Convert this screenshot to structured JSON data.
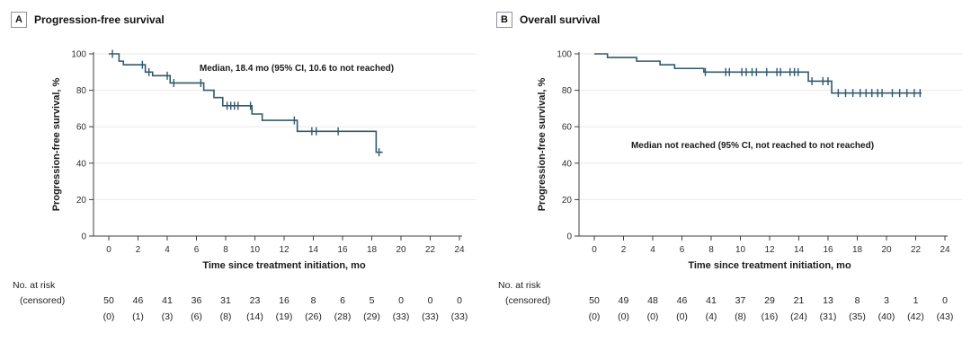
{
  "figure": {
    "background": "#ffffff",
    "risk_header": "No. at risk",
    "risk_censored_label": "(censored)"
  },
  "colors": {
    "curve": "#30596b",
    "axis": "#3f3f3f",
    "grid": "#e8e8e8",
    "tick_text": "#2e2e2e"
  },
  "chart_data": [
    {
      "type": "line",
      "subtype": "kaplan-meier-step",
      "panel": "A",
      "title": "Progression-free survival",
      "ylabel": "Progression-free survival, %",
      "xlabel": "Time since treatment initiation, mo",
      "annotation": "Median, 18.4 mo (95% CI, 10.6 to not reached)",
      "xlim": [
        0,
        24
      ],
      "ylim": [
        0,
        100
      ],
      "xticks": [
        0,
        2,
        4,
        6,
        8,
        10,
        12,
        14,
        16,
        18,
        20,
        22,
        24
      ],
      "yticks": [
        0,
        20,
        40,
        60,
        80,
        100
      ],
      "grid": true,
      "legend": "none",
      "steps": [
        [
          0,
          100
        ],
        [
          0.7,
          96
        ],
        [
          1.0,
          94
        ],
        [
          2.5,
          90
        ],
        [
          3.0,
          88
        ],
        [
          4.2,
          84
        ],
        [
          6.5,
          80
        ],
        [
          7.2,
          76
        ],
        [
          7.8,
          71.5
        ],
        [
          9.8,
          67
        ],
        [
          10.5,
          63.5
        ],
        [
          12.9,
          57.5
        ],
        [
          18.3,
          46
        ]
      ],
      "curve_end": 18.75,
      "censors": [
        [
          0.25,
          100
        ],
        [
          2.3,
          94
        ],
        [
          2.75,
          90
        ],
        [
          4.0,
          88
        ],
        [
          4.45,
          84
        ],
        [
          6.3,
          84
        ],
        [
          8.1,
          71.5
        ],
        [
          8.35,
          71.5
        ],
        [
          8.6,
          71.5
        ],
        [
          8.85,
          71.5
        ],
        [
          9.7,
          71.5
        ],
        [
          12.7,
          63.5
        ],
        [
          13.9,
          57.5
        ],
        [
          14.2,
          57.5
        ],
        [
          15.7,
          57.5
        ],
        [
          18.5,
          46
        ]
      ],
      "at_risk": {
        "times": [
          0,
          2,
          4,
          6,
          8,
          10,
          12,
          14,
          16,
          18,
          20,
          22,
          24
        ],
        "n": [
          50,
          46,
          41,
          36,
          31,
          23,
          16,
          8,
          6,
          5,
          0,
          0,
          0
        ],
        "censored": [
          "(0)",
          "(1)",
          "(3)",
          "(6)",
          "(8)",
          "(14)",
          "(19)",
          "(26)",
          "(28)",
          "(29)",
          "(33)",
          "(33)",
          "(33)"
        ]
      }
    },
    {
      "type": "line",
      "subtype": "kaplan-meier-step",
      "panel": "B",
      "title": "Overall survival",
      "ylabel": "Progression-free survival, %",
      "xlabel": "Time since treatment initiation, mo",
      "annotation": "Median not reached (95% CI, not reached to not reached)",
      "xlim": [
        0,
        24
      ],
      "ylim": [
        0,
        100
      ],
      "xticks": [
        0,
        2,
        4,
        6,
        8,
        10,
        12,
        14,
        16,
        18,
        20,
        22,
        24
      ],
      "yticks": [
        0,
        20,
        40,
        60,
        80,
        100
      ],
      "grid": true,
      "legend": "none",
      "steps": [
        [
          0,
          100
        ],
        [
          0.9,
          98
        ],
        [
          2.9,
          96
        ],
        [
          4.5,
          94
        ],
        [
          5.5,
          92
        ],
        [
          7.5,
          90
        ],
        [
          14.65,
          85
        ],
        [
          16.25,
          78.5
        ]
      ],
      "curve_end": 22.4,
      "censors": [
        [
          7.6,
          90
        ],
        [
          9.0,
          90
        ],
        [
          9.25,
          90
        ],
        [
          10.1,
          90
        ],
        [
          10.4,
          90
        ],
        [
          10.8,
          90
        ],
        [
          11.1,
          90
        ],
        [
          11.8,
          90
        ],
        [
          12.5,
          90
        ],
        [
          12.75,
          90
        ],
        [
          13.4,
          90
        ],
        [
          13.7,
          90
        ],
        [
          13.95,
          90
        ],
        [
          14.9,
          85
        ],
        [
          15.65,
          85
        ],
        [
          16.0,
          85
        ],
        [
          16.7,
          78.5
        ],
        [
          17.2,
          78.5
        ],
        [
          17.7,
          78.5
        ],
        [
          18.2,
          78.5
        ],
        [
          18.6,
          78.5
        ],
        [
          19.0,
          78.5
        ],
        [
          19.4,
          78.5
        ],
        [
          19.7,
          78.5
        ],
        [
          20.4,
          78.5
        ],
        [
          20.9,
          78.5
        ],
        [
          21.4,
          78.5
        ],
        [
          21.9,
          78.5
        ],
        [
          22.3,
          78.5
        ]
      ],
      "at_risk": {
        "times": [
          0,
          2,
          4,
          6,
          8,
          10,
          12,
          14,
          16,
          18,
          20,
          22,
          24
        ],
        "n": [
          50,
          49,
          48,
          46,
          41,
          37,
          29,
          21,
          13,
          8,
          3,
          1,
          0
        ],
        "censored": [
          "(0)",
          "(0)",
          "(0)",
          "(0)",
          "(4)",
          "(8)",
          "(16)",
          "(24)",
          "(31)",
          "(35)",
          "(40)",
          "(42)",
          "(43)"
        ]
      }
    }
  ]
}
